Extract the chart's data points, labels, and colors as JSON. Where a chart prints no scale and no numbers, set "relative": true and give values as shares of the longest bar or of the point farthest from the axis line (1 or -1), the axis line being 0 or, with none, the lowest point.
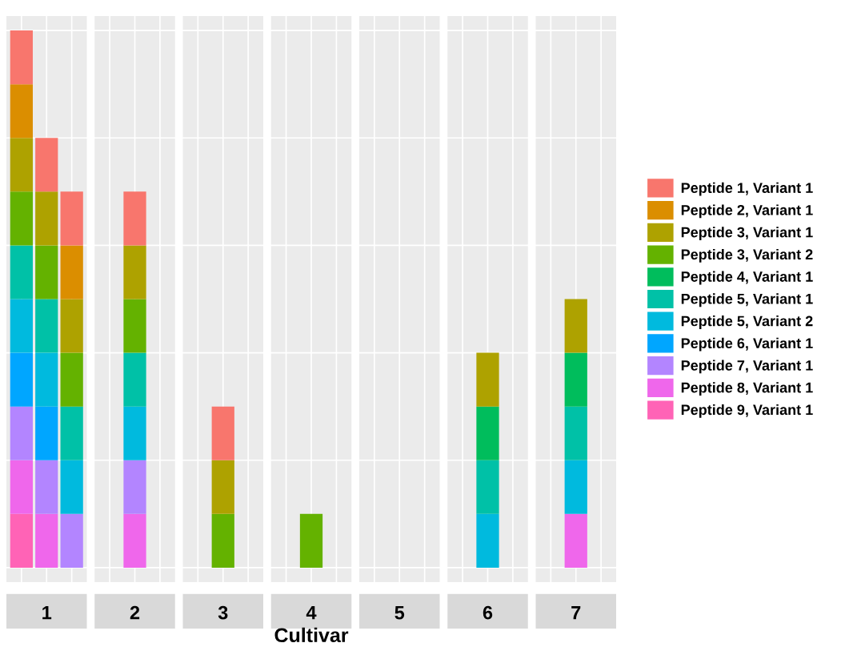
{
  "chart_data": {
    "type": "bar",
    "stacked": true,
    "relative": true,
    "xlabel": "Cultivar",
    "grid": true,
    "legend": "right",
    "categories": [
      null,
      "1",
      null,
      null,
      "2",
      null,
      null,
      "3",
      null,
      null,
      "4",
      null,
      null,
      "5",
      null,
      null,
      "6",
      null,
      null,
      "7",
      null
    ],
    "series": [
      {
        "name": "Peptide 9, Variant 1",
        "color": "#ff63b6",
        "values": [
          0.1,
          null,
          null,
          null,
          null,
          null,
          null,
          null,
          null,
          null,
          null,
          null,
          null,
          null,
          null,
          null,
          null,
          null,
          null,
          null,
          null
        ]
      },
      {
        "name": "Peptide 8, Variant 1",
        "color": "#ef67eb",
        "values": [
          0.1,
          0.1,
          null,
          null,
          0.1,
          null,
          null,
          null,
          null,
          null,
          null,
          null,
          null,
          null,
          null,
          null,
          null,
          null,
          null,
          0.1,
          null
        ]
      },
      {
        "name": "Peptide 7, Variant 1",
        "color": "#b385ff",
        "values": [
          0.1,
          0.1,
          0.1,
          null,
          0.1,
          null,
          null,
          null,
          null,
          null,
          null,
          null,
          null,
          null,
          null,
          null,
          null,
          null,
          null,
          null,
          null
        ]
      },
      {
        "name": "Peptide 6, Variant 1",
        "color": "#00a6ff",
        "values": [
          0.1,
          0.1,
          null,
          null,
          null,
          null,
          null,
          null,
          null,
          null,
          null,
          null,
          null,
          null,
          null,
          null,
          null,
          null,
          null,
          null,
          null
        ]
      },
      {
        "name": "Peptide 5, Variant 2",
        "color": "#00bade",
        "values": [
          0.1,
          0.1,
          0.1,
          null,
          0.1,
          null,
          null,
          null,
          null,
          null,
          null,
          null,
          null,
          null,
          null,
          null,
          0.1,
          null,
          null,
          0.1,
          null
        ]
      },
      {
        "name": "Peptide 5, Variant 1",
        "color": "#00c1a7",
        "values": [
          0.1,
          0.1,
          0.1,
          null,
          0.1,
          null,
          null,
          null,
          null,
          null,
          null,
          null,
          null,
          null,
          null,
          null,
          0.1,
          null,
          null,
          0.1,
          null
        ]
      },
      {
        "name": "Peptide 4, Variant 1",
        "color": "#00bd5c",
        "values": [
          null,
          null,
          null,
          null,
          null,
          null,
          null,
          null,
          null,
          null,
          null,
          null,
          null,
          null,
          null,
          null,
          0.1,
          null,
          null,
          0.1,
          null
        ]
      },
      {
        "name": "Peptide 3, Variant 2",
        "color": "#64b200",
        "values": [
          0.1,
          0.1,
          0.1,
          null,
          0.1,
          null,
          null,
          0.1,
          null,
          null,
          0.1,
          null,
          null,
          null,
          null,
          null,
          null,
          null,
          null,
          null,
          null
        ]
      },
      {
        "name": "Peptide 3, Variant 1",
        "color": "#aea200",
        "values": [
          0.1,
          0.1,
          0.1,
          null,
          0.1,
          null,
          null,
          0.1,
          null,
          null,
          null,
          null,
          null,
          null,
          null,
          null,
          0.1,
          null,
          null,
          0.1,
          null
        ]
      },
      {
        "name": "Peptide 2, Variant 1",
        "color": "#db8e00",
        "values": [
          0.1,
          null,
          0.1,
          null,
          null,
          null,
          null,
          null,
          null,
          null,
          null,
          null,
          null,
          null,
          null,
          null,
          null,
          null,
          null,
          null,
          null
        ]
      },
      {
        "name": "Peptide 1, Variant 1",
        "color": "#f8766d",
        "values": [
          0.1,
          0.1,
          0.1,
          null,
          0.1,
          null,
          null,
          0.1,
          null,
          null,
          null,
          null,
          null,
          null,
          null,
          null,
          null,
          null,
          null,
          null,
          null
        ]
      }
    ]
  }
}
